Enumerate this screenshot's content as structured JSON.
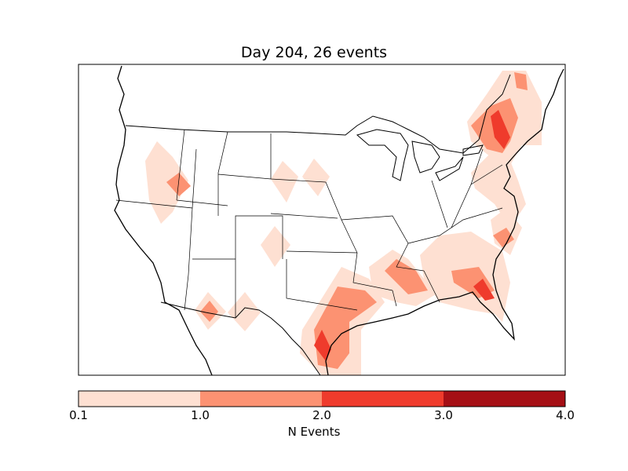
{
  "title": "Day 204, 26 events",
  "colorbar": {
    "label": "N Events",
    "ticks": [
      "0.1",
      "1.0",
      "2.0",
      "3.0",
      "4.0"
    ],
    "bins": [
      {
        "from": 0.1,
        "to": 1.0,
        "color": "#fee0d2"
      },
      {
        "from": 1.0,
        "to": 2.0,
        "color": "#fc9272"
      },
      {
        "from": 2.0,
        "to": 3.0,
        "color": "#ef3b2c"
      },
      {
        "from": 3.0,
        "to": 4.0,
        "color": "#a50f15"
      }
    ]
  }
}
